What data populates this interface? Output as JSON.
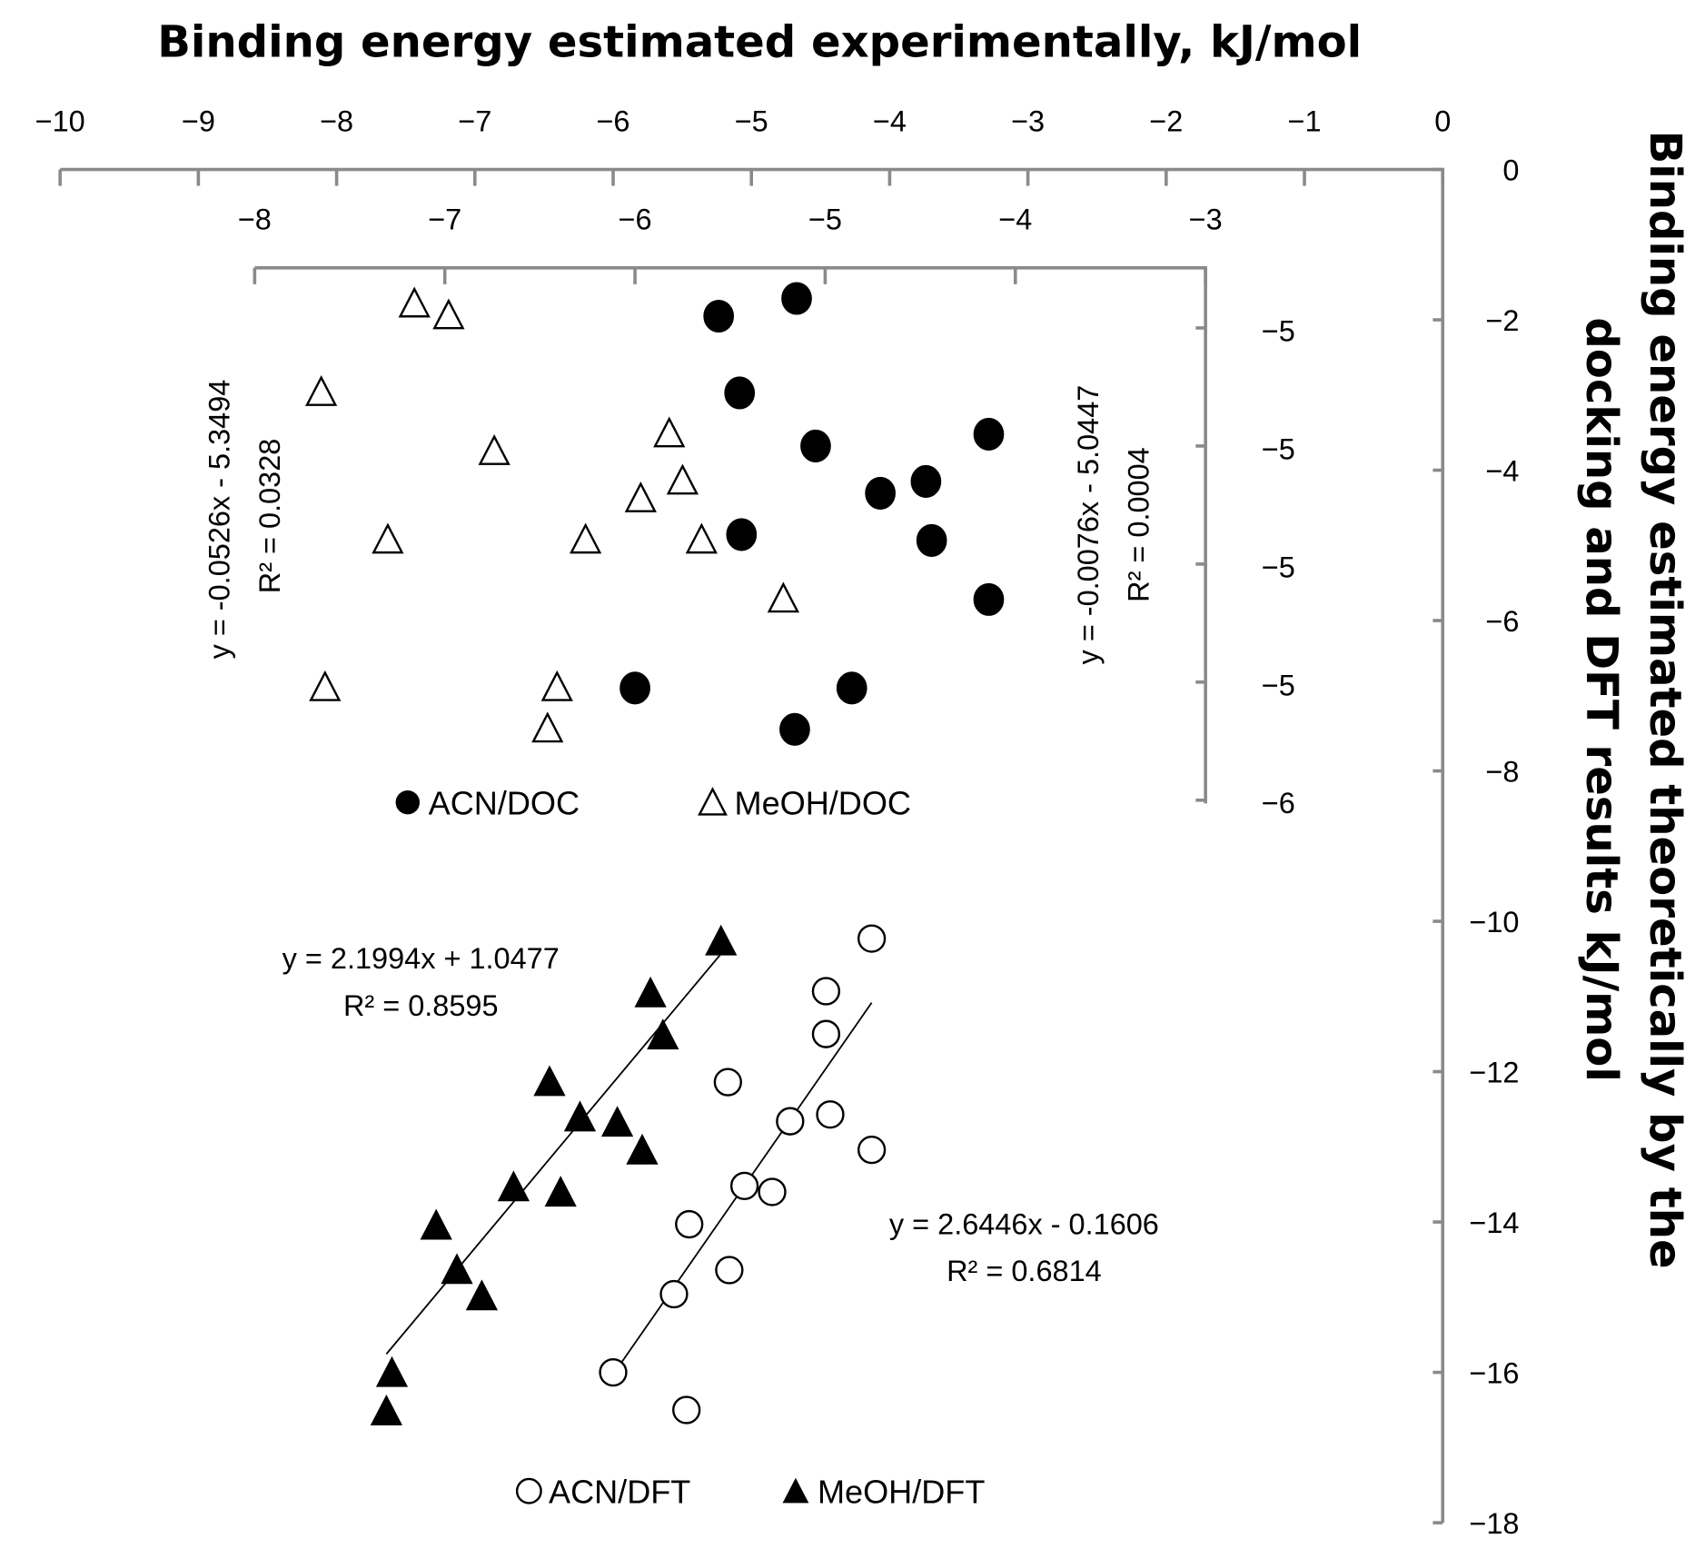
{
  "chart_data": [
    {
      "type": "scatter",
      "name": "DFT panel",
      "title": "Binding energy estimated experimentally,  kJ/mol",
      "ylabel_lines": [
        "Binding energy estimated theoretically by the",
        "docking and DFT results  kJ/mol"
      ],
      "xlim": [
        -10,
        0
      ],
      "ylim": [
        -18,
        0
      ],
      "xticks": [
        -10,
        -9,
        -8,
        -7,
        -6,
        -5,
        -4,
        -3,
        -2,
        -1,
        0
      ],
      "xtick_labels": [
        "−10",
        "−9",
        "−8",
        "−7",
        "−6",
        "−5",
        "−4",
        "−3",
        "−2",
        "−1",
        "0"
      ],
      "yticks": [
        0,
        -2,
        -4,
        -6,
        -8,
        -10,
        -12,
        -14,
        -16,
        -18
      ],
      "ytick_labels": [
        "0",
        "−2",
        "−4",
        "−6",
        "−8",
        "−10",
        "−12",
        "−14",
        "−16",
        "−18"
      ],
      "grid": false,
      "series": [
        {
          "name": "ACN/DFT",
          "marker": "open-circle",
          "x": [
            -4.13,
            -4.46,
            -4.46,
            -5.17,
            -4.72,
            -4.43,
            -4.13,
            -5.05,
            -4.85,
            -5.45,
            -5.16,
            -5.56,
            -6.0,
            -5.47
          ],
          "y": [
            -10.23,
            -10.93,
            -11.5,
            -12.14,
            -12.66,
            -12.57,
            -13.04,
            -13.52,
            -13.6,
            -14.03,
            -14.64,
            -14.96,
            -16.0,
            -16.5
          ],
          "trendline": {
            "slope": 2.6446,
            "intercept": -0.1606,
            "x_range": [
              -6.0,
              -4.13
            ],
            "equation": "y = 2.6446x - 0.1606",
            "r2": "R² = 0.6814"
          }
        },
        {
          "name": "MeOH/DFT",
          "marker": "filled-triangle",
          "x": [
            -5.22,
            -5.73,
            -5.64,
            -6.46,
            -6.24,
            -5.97,
            -5.79,
            -6.72,
            -6.38,
            -7.28,
            -7.13,
            -6.95,
            -7.6,
            -7.64
          ],
          "y": [
            -10.28,
            -10.97,
            -11.53,
            -12.15,
            -12.62,
            -12.69,
            -13.06,
            -13.55,
            -13.62,
            -14.06,
            -14.65,
            -15.0,
            -16.02,
            -16.53
          ],
          "trendline": {
            "slope": 2.1994,
            "intercept": 1.0477,
            "x_range": [
              -7.64,
              -5.22
            ],
            "equation": "y = 2.1994x + 1.0477",
            "r2": "R² = 0.8595"
          }
        }
      ]
    },
    {
      "type": "scatter",
      "name": "DOC panel",
      "xlim": [
        -8,
        -3
      ],
      "ylim": [
        -5.6,
        -4.7
      ],
      "xticks": [
        -8,
        -7,
        -6,
        -5,
        -4,
        -3
      ],
      "xtick_labels": [
        "−8",
        "−7",
        "−6",
        "−5",
        "−4",
        "−3"
      ],
      "yticks": [
        -4.8,
        -5.0,
        -5.2,
        -5.4,
        -5.6
      ],
      "ytick_labels": [
        "−5",
        "−5",
        "−5",
        "−5",
        "−6"
      ],
      "grid": false,
      "series": [
        {
          "name": "ACN/DOC",
          "marker": "filled-circle",
          "x": [
            -5.15,
            -5.56,
            -5.45,
            -5.05,
            -4.14,
            -4.47,
            -4.71,
            -4.44,
            -5.44,
            -4.14,
            -6.0,
            -4.86,
            -5.16
          ],
          "y": [
            -4.75,
            -4.78,
            -4.91,
            -5.0,
            -4.98,
            -5.06,
            -5.08,
            -5.16,
            -5.15,
            -5.26,
            -5.41,
            -5.41,
            -5.48
          ],
          "trendline": {
            "equation": "y = -0.0076x - 5.0447",
            "r2": "R² = 0.0004"
          }
        },
        {
          "name": "MeOH/DOC",
          "marker": "open-triangle",
          "x": [
            -7.16,
            -6.98,
            -7.65,
            -6.74,
            -5.82,
            -5.75,
            -5.97,
            -7.3,
            -6.26,
            -5.65,
            -5.22,
            -7.63,
            -6.41,
            -6.46
          ],
          "y": [
            -4.76,
            -4.78,
            -4.91,
            -5.01,
            -4.98,
            -5.06,
            -5.09,
            -5.16,
            -5.16,
            -5.16,
            -5.26,
            -5.41,
            -5.41,
            -5.48
          ],
          "trendline": {
            "equation": "y = -0.0526x - 5.3494",
            "r2": "R² = 0.0328"
          }
        }
      ]
    }
  ]
}
